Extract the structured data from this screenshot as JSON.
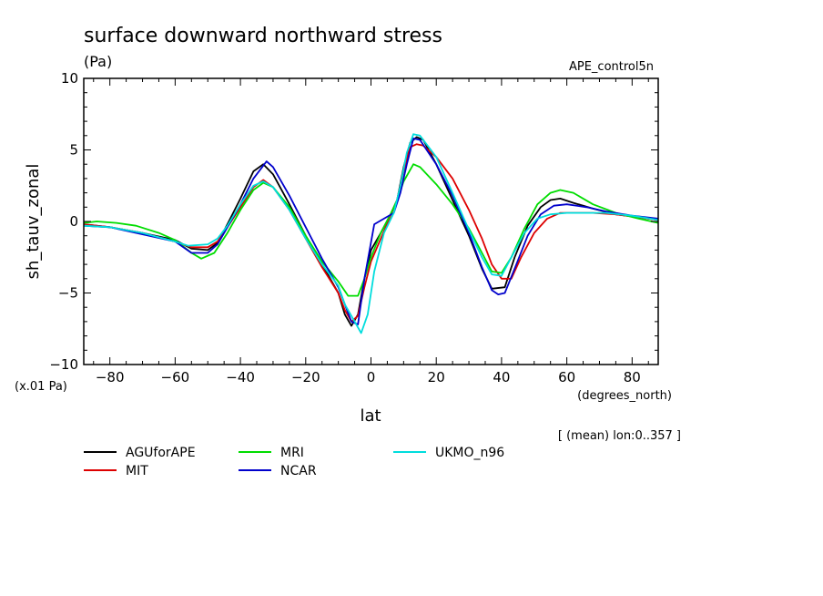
{
  "chart_data": {
    "type": "line",
    "title": "surface downward northward stress",
    "units": "(Pa)",
    "run_label": "APE_control5n",
    "scale_note": "(x.01 Pa)",
    "xlabel": "lat",
    "xunits": "(degrees_north)",
    "ylabel": "sh_tauv_zonal",
    "mean_note": "[ (mean) lon:0..357 ]",
    "xlim": [
      -88,
      88
    ],
    "ylim": [
      -10,
      10
    ],
    "x_ticks": [
      -80,
      -60,
      -40,
      -20,
      0,
      20,
      40,
      60,
      80
    ],
    "y_ticks": [
      -10,
      -5,
      0,
      5,
      10
    ],
    "series": [
      {
        "name": "AGUforAPE",
        "color": "#000000",
        "points": [
          [
            -88,
            -0.2
          ],
          [
            -80,
            -0.4
          ],
          [
            -70,
            -0.8
          ],
          [
            -60,
            -1.3
          ],
          [
            -55,
            -1.9
          ],
          [
            -50,
            -2.0
          ],
          [
            -47,
            -1.5
          ],
          [
            -44,
            -0.2
          ],
          [
            -40,
            1.6
          ],
          [
            -36,
            3.5
          ],
          [
            -33,
            4.0
          ],
          [
            -30,
            3.3
          ],
          [
            -25,
            1.2
          ],
          [
            -20,
            -1.0
          ],
          [
            -15,
            -3.0
          ],
          [
            -10,
            -5.0
          ],
          [
            -8,
            -6.5
          ],
          [
            -6,
            -7.3
          ],
          [
            -4,
            -6.5
          ],
          [
            -2,
            -4.0
          ],
          [
            0,
            -2.0
          ],
          [
            3,
            -0.8
          ],
          [
            6,
            0.5
          ],
          [
            8,
            1.5
          ],
          [
            10,
            3.8
          ],
          [
            12,
            5.5
          ],
          [
            14,
            5.9
          ],
          [
            16,
            5.7
          ],
          [
            20,
            4.0
          ],
          [
            25,
            1.5
          ],
          [
            30,
            -1.0
          ],
          [
            34,
            -3.3
          ],
          [
            37,
            -4.7
          ],
          [
            41,
            -4.6
          ],
          [
            44,
            -2.5
          ],
          [
            48,
            -0.3
          ],
          [
            52,
            1.0
          ],
          [
            55,
            1.5
          ],
          [
            58,
            1.6
          ],
          [
            62,
            1.3
          ],
          [
            68,
            0.9
          ],
          [
            75,
            0.5
          ],
          [
            82,
            0.3
          ],
          [
            88,
            0.1
          ]
        ]
      },
      {
        "name": "MIT",
        "color": "#dd0000",
        "points": [
          [
            -88,
            -0.2
          ],
          [
            -80,
            -0.4
          ],
          [
            -70,
            -0.8
          ],
          [
            -60,
            -1.4
          ],
          [
            -55,
            -1.8
          ],
          [
            -50,
            -1.8
          ],
          [
            -47,
            -1.4
          ],
          [
            -44,
            -0.4
          ],
          [
            -40,
            1.0
          ],
          [
            -36,
            2.4
          ],
          [
            -33,
            2.9
          ],
          [
            -30,
            2.4
          ],
          [
            -25,
            0.8
          ],
          [
            -20,
            -1.2
          ],
          [
            -15,
            -3.2
          ],
          [
            -10,
            -5.0
          ],
          [
            -8,
            -6.2
          ],
          [
            -6,
            -7.0
          ],
          [
            -4,
            -6.6
          ],
          [
            -2,
            -4.6
          ],
          [
            0,
            -2.8
          ],
          [
            3,
            -1.2
          ],
          [
            6,
            0.4
          ],
          [
            8,
            1.5
          ],
          [
            10,
            3.5
          ],
          [
            12,
            5.2
          ],
          [
            14,
            5.4
          ],
          [
            16,
            5.3
          ],
          [
            20,
            4.5
          ],
          [
            25,
            3.0
          ],
          [
            30,
            0.8
          ],
          [
            34,
            -1.2
          ],
          [
            37,
            -3.0
          ],
          [
            40,
            -4.0
          ],
          [
            43,
            -4.0
          ],
          [
            46,
            -2.5
          ],
          [
            50,
            -0.8
          ],
          [
            54,
            0.2
          ],
          [
            58,
            0.6
          ],
          [
            62,
            0.6
          ],
          [
            68,
            0.6
          ],
          [
            75,
            0.5
          ],
          [
            82,
            0.3
          ],
          [
            88,
            0.1
          ]
        ]
      },
      {
        "name": "MRI",
        "color": "#00dd00",
        "points": [
          [
            -88,
            -0.1
          ],
          [
            -84,
            0.0
          ],
          [
            -78,
            -0.1
          ],
          [
            -72,
            -0.3
          ],
          [
            -65,
            -0.8
          ],
          [
            -60,
            -1.3
          ],
          [
            -55,
            -2.2
          ],
          [
            -52,
            -2.6
          ],
          [
            -48,
            -2.2
          ],
          [
            -44,
            -0.8
          ],
          [
            -40,
            0.8
          ],
          [
            -36,
            2.2
          ],
          [
            -33,
            2.7
          ],
          [
            -30,
            2.4
          ],
          [
            -25,
            1.0
          ],
          [
            -20,
            -1.0
          ],
          [
            -15,
            -2.8
          ],
          [
            -10,
            -4.2
          ],
          [
            -7,
            -5.2
          ],
          [
            -4,
            -5.2
          ],
          [
            -2,
            -4.0
          ],
          [
            0,
            -2.5
          ],
          [
            3,
            -0.8
          ],
          [
            6,
            0.5
          ],
          [
            8,
            1.5
          ],
          [
            10,
            2.8
          ],
          [
            13,
            4.0
          ],
          [
            15,
            3.8
          ],
          [
            20,
            2.6
          ],
          [
            25,
            1.2
          ],
          [
            30,
            -0.5
          ],
          [
            34,
            -2.2
          ],
          [
            37,
            -3.5
          ],
          [
            40,
            -3.6
          ],
          [
            43,
            -2.5
          ],
          [
            47,
            -0.5
          ],
          [
            51,
            1.2
          ],
          [
            55,
            2.0
          ],
          [
            58,
            2.2
          ],
          [
            62,
            2.0
          ],
          [
            68,
            1.2
          ],
          [
            75,
            0.6
          ],
          [
            82,
            0.2
          ],
          [
            88,
            -0.1
          ]
        ]
      },
      {
        "name": "NCAR",
        "color": "#0000cc",
        "points": [
          [
            -88,
            -0.3
          ],
          [
            -80,
            -0.4
          ],
          [
            -70,
            -0.9
          ],
          [
            -60,
            -1.4
          ],
          [
            -55,
            -2.2
          ],
          [
            -50,
            -2.2
          ],
          [
            -47,
            -1.6
          ],
          [
            -44,
            -0.4
          ],
          [
            -40,
            1.2
          ],
          [
            -36,
            3.0
          ],
          [
            -32,
            4.2
          ],
          [
            -30,
            3.8
          ],
          [
            -25,
            1.8
          ],
          [
            -20,
            -0.4
          ],
          [
            -15,
            -2.6
          ],
          [
            -10,
            -4.6
          ],
          [
            -8,
            -5.8
          ],
          [
            -6,
            -7.0
          ],
          [
            -4,
            -7.2
          ],
          [
            -2,
            -4.0
          ],
          [
            1,
            -0.2
          ],
          [
            4,
            0.2
          ],
          [
            7,
            0.6
          ],
          [
            9,
            2.0
          ],
          [
            11,
            4.0
          ],
          [
            13,
            5.8
          ],
          [
            15,
            5.7
          ],
          [
            20,
            4.0
          ],
          [
            25,
            1.8
          ],
          [
            30,
            -0.8
          ],
          [
            34,
            -3.2
          ],
          [
            37,
            -4.8
          ],
          [
            39,
            -5.1
          ],
          [
            41,
            -5.0
          ],
          [
            44,
            -3.3
          ],
          [
            48,
            -1.0
          ],
          [
            52,
            0.5
          ],
          [
            56,
            1.1
          ],
          [
            60,
            1.2
          ],
          [
            66,
            1.0
          ],
          [
            72,
            0.7
          ],
          [
            80,
            0.4
          ],
          [
            88,
            0.2
          ]
        ]
      },
      {
        "name": "UKMO_n96",
        "color": "#00dddd",
        "points": [
          [
            -88,
            -0.3
          ],
          [
            -80,
            -0.4
          ],
          [
            -70,
            -0.8
          ],
          [
            -60,
            -1.4
          ],
          [
            -56,
            -1.7
          ],
          [
            -50,
            -1.6
          ],
          [
            -47,
            -1.2
          ],
          [
            -44,
            -0.3
          ],
          [
            -40,
            1.2
          ],
          [
            -36,
            2.5
          ],
          [
            -33,
            2.8
          ],
          [
            -30,
            2.4
          ],
          [
            -25,
            0.8
          ],
          [
            -20,
            -1.2
          ],
          [
            -15,
            -3.0
          ],
          [
            -10,
            -4.5
          ],
          [
            -8,
            -5.8
          ],
          [
            -5,
            -7.0
          ],
          [
            -3,
            -7.8
          ],
          [
            -1,
            -6.5
          ],
          [
            1,
            -3.5
          ],
          [
            4,
            -0.8
          ],
          [
            7,
            0.6
          ],
          [
            9,
            2.5
          ],
          [
            11,
            4.8
          ],
          [
            13,
            6.1
          ],
          [
            15,
            6.0
          ],
          [
            20,
            4.5
          ],
          [
            25,
            2.0
          ],
          [
            30,
            -0.6
          ],
          [
            34,
            -2.5
          ],
          [
            37,
            -3.7
          ],
          [
            40,
            -3.8
          ],
          [
            43,
            -2.5
          ],
          [
            47,
            -0.8
          ],
          [
            51,
            0.2
          ],
          [
            55,
            0.5
          ],
          [
            60,
            0.6
          ],
          [
            66,
            0.6
          ],
          [
            72,
            0.6
          ],
          [
            80,
            0.4
          ],
          [
            88,
            0.1
          ]
        ]
      }
    ]
  }
}
